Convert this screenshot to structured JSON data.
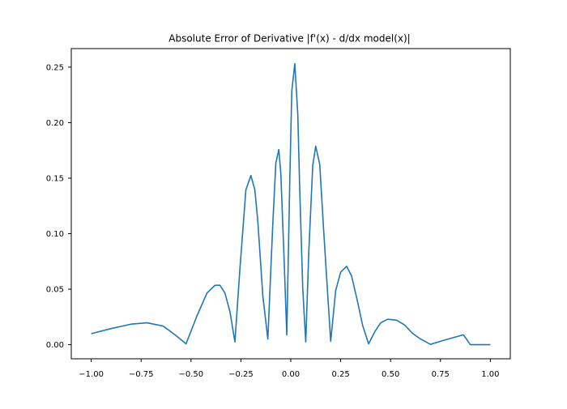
{
  "chart_data": {
    "type": "line",
    "title": "Absolute Error of Derivative |f'(x) - d/dx model(x)|",
    "xlabel": "",
    "ylabel": "",
    "xlim": [
      -1.1,
      1.1
    ],
    "ylim": [
      -0.0127,
      0.2667
    ],
    "grid": false,
    "legend": "none",
    "xticks": [
      -1.0,
      -0.75,
      -0.5,
      -0.25,
      0.0,
      0.25,
      0.5,
      0.75,
      1.0
    ],
    "xtick_labels": [
      "−1.00",
      "−0.75",
      "−0.50",
      "−0.25",
      "0.00",
      "0.25",
      "0.50",
      "0.75",
      "1.00"
    ],
    "yticks": [
      0.0,
      0.05,
      0.1,
      0.15,
      0.2,
      0.25
    ],
    "ytick_labels": [
      "0.00",
      "0.05",
      "0.10",
      "0.15",
      "0.20",
      "0.25"
    ],
    "series": [
      {
        "color": "#1f77b4",
        "x": [
          -1.0,
          -0.9,
          -0.8,
          -0.72,
          -0.64,
          -0.58,
          -0.525,
          -0.47,
          -0.42,
          -0.38,
          -0.355,
          -0.33,
          -0.305,
          -0.28,
          -0.255,
          -0.225,
          -0.2,
          -0.18,
          -0.165,
          -0.14,
          -0.115,
          -0.09,
          -0.075,
          -0.06,
          -0.05,
          -0.035,
          -0.02,
          -0.005,
          0.005,
          0.02,
          0.035,
          0.045,
          0.06,
          0.075,
          0.09,
          0.11,
          0.125,
          0.145,
          0.165,
          0.18,
          0.2,
          0.225,
          0.25,
          0.28,
          0.305,
          0.335,
          0.36,
          0.39,
          0.42,
          0.45,
          0.485,
          0.53,
          0.57,
          0.61,
          0.65,
          0.7,
          0.76,
          0.82,
          0.865,
          0.9,
          0.95,
          1.0
        ],
        "y": [
          0.0099,
          0.0145,
          0.0185,
          0.0197,
          0.0168,
          0.0089,
          0.0008,
          0.026,
          0.0465,
          0.0535,
          0.0536,
          0.0465,
          0.0298,
          0.0025,
          0.0682,
          0.1395,
          0.1524,
          0.1395,
          0.1105,
          0.0437,
          0.0051,
          0.1095,
          0.1635,
          0.1758,
          0.1545,
          0.0842,
          0.0089,
          0.1487,
          0.2285,
          0.2531,
          0.2078,
          0.1386,
          0.0505,
          0.0025,
          0.0828,
          0.1613,
          0.1788,
          0.1626,
          0.1022,
          0.0595,
          0.0031,
          0.0487,
          0.0654,
          0.0706,
          0.0617,
          0.0384,
          0.0174,
          0.0007,
          0.0114,
          0.0196,
          0.0229,
          0.0221,
          0.0178,
          0.0102,
          0.0051,
          0.0003,
          0.0036,
          0.0066,
          0.0089,
          0.0,
          0.0,
          0.0
        ]
      }
    ]
  }
}
